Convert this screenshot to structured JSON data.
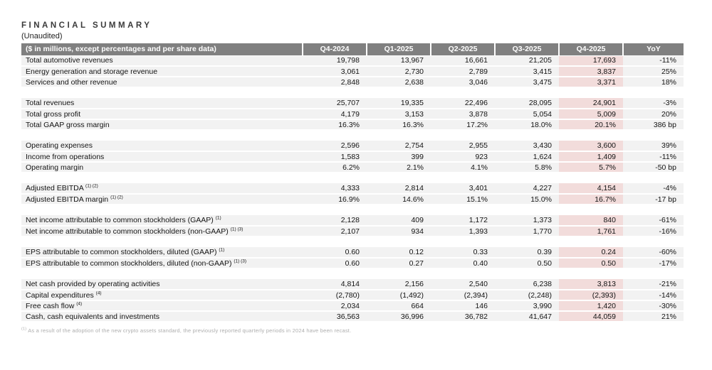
{
  "page": {
    "title": "FINANCIAL SUMMARY",
    "subtitle": "(Unaudited)"
  },
  "table": {
    "header_label": "($ in millions, except percentages and per share data)",
    "columns": [
      "Q4-2024",
      "Q1-2025",
      "Q2-2025",
      "Q3-2025",
      "Q4-2025",
      "YoY"
    ],
    "highlight_column": "Q4-2025",
    "colors": {
      "header_bg": "#808080",
      "header_text": "#ffffff",
      "row_bg": "#f2f2f2",
      "highlight_bg": "#f2dcdb",
      "body_text": "#141414",
      "footnote_text": "#aeaeae"
    },
    "sections": [
      {
        "rows": [
          {
            "label": "Total automotive revenues",
            "sup": "",
            "values": [
              "19,798",
              "13,967",
              "16,661",
              "21,205",
              "17,693",
              "-11%"
            ]
          },
          {
            "label": "Energy generation and storage revenue",
            "sup": "",
            "values": [
              "3,061",
              "2,730",
              "2,789",
              "3,415",
              "3,837",
              "25%"
            ]
          },
          {
            "label": "Services and other revenue",
            "sup": "",
            "values": [
              "2,848",
              "2,638",
              "3,046",
              "3,475",
              "3,371",
              "18%"
            ]
          }
        ]
      },
      {
        "rows": [
          {
            "label": "Total revenues",
            "sup": "",
            "values": [
              "25,707",
              "19,335",
              "22,496",
              "28,095",
              "24,901",
              "-3%"
            ]
          },
          {
            "label": "Total gross profit",
            "sup": "",
            "values": [
              "4,179",
              "3,153",
              "3,878",
              "5,054",
              "5,009",
              "20%"
            ]
          },
          {
            "label": "Total GAAP gross margin",
            "sup": "",
            "values": [
              "16.3%",
              "16.3%",
              "17.2%",
              "18.0%",
              "20.1%",
              "386 bp"
            ]
          }
        ]
      },
      {
        "rows": [
          {
            "label": "Operating expenses",
            "sup": "",
            "values": [
              "2,596",
              "2,754",
              "2,955",
              "3,430",
              "3,600",
              "39%"
            ]
          },
          {
            "label": "Income from operations",
            "sup": "",
            "values": [
              "1,583",
              "399",
              "923",
              "1,624",
              "1,409",
              "-11%"
            ]
          },
          {
            "label": "Operating margin",
            "sup": "",
            "values": [
              "6.2%",
              "2.1%",
              "4.1%",
              "5.8%",
              "5.7%",
              "-50 bp"
            ]
          }
        ]
      },
      {
        "rows": [
          {
            "label": "Adjusted EBITDA",
            "sup": "(1) (2)",
            "values": [
              "4,333",
              "2,814",
              "3,401",
              "4,227",
              "4,154",
              "-4%"
            ]
          },
          {
            "label": "Adjusted EBITDA margin",
            "sup": "(1) (2)",
            "values": [
              "16.9%",
              "14.6%",
              "15.1%",
              "15.0%",
              "16.7%",
              "-17 bp"
            ]
          }
        ]
      },
      {
        "rows": [
          {
            "label": "Net income attributable to common stockholders (GAAP)",
            "sup": "(1)",
            "values": [
              "2,128",
              "409",
              "1,172",
              "1,373",
              "840",
              "-61%"
            ]
          },
          {
            "label": "Net income attributable to common stockholders (non-GAAP)",
            "sup": "(1) (3)",
            "values": [
              "2,107",
              "934",
              "1,393",
              "1,770",
              "1,761",
              "-16%"
            ]
          }
        ]
      },
      {
        "rows": [
          {
            "label": "EPS attributable to common stockholders, diluted (GAAP)",
            "sup": "(1)",
            "values": [
              "0.60",
              "0.12",
              "0.33",
              "0.39",
              "0.24",
              "-60%"
            ]
          },
          {
            "label": "EPS attributable to common stockholders, diluted (non-GAAP)",
            "sup": "(1) (3)",
            "values": [
              "0.60",
              "0.27",
              "0.40",
              "0.50",
              "0.50",
              "-17%"
            ]
          }
        ]
      },
      {
        "rows": [
          {
            "label": "Net cash provided by operating activities",
            "sup": "",
            "values": [
              "4,814",
              "2,156",
              "2,540",
              "6,238",
              "3,813",
              "-21%"
            ]
          },
          {
            "label": "Capital expenditures",
            "sup": "(4)",
            "values": [
              "(2,780)",
              "(1,492)",
              "(2,394)",
              "(2,248)",
              "(2,393)",
              "-14%"
            ]
          },
          {
            "label": "Free cash flow",
            "sup": "(4)",
            "values": [
              "2,034",
              "664",
              "146",
              "3,990",
              "1,420",
              "-30%"
            ]
          },
          {
            "label": "Cash, cash equivalents and investments",
            "sup": "",
            "values": [
              "36,563",
              "36,996",
              "36,782",
              "41,647",
              "44,059",
              "21%"
            ]
          }
        ]
      }
    ]
  },
  "footnote": {
    "marker": "(1)",
    "text": "As a result of the adoption of the new crypto assets standard, the previously reported quarterly periods in 2024 have been recast."
  }
}
